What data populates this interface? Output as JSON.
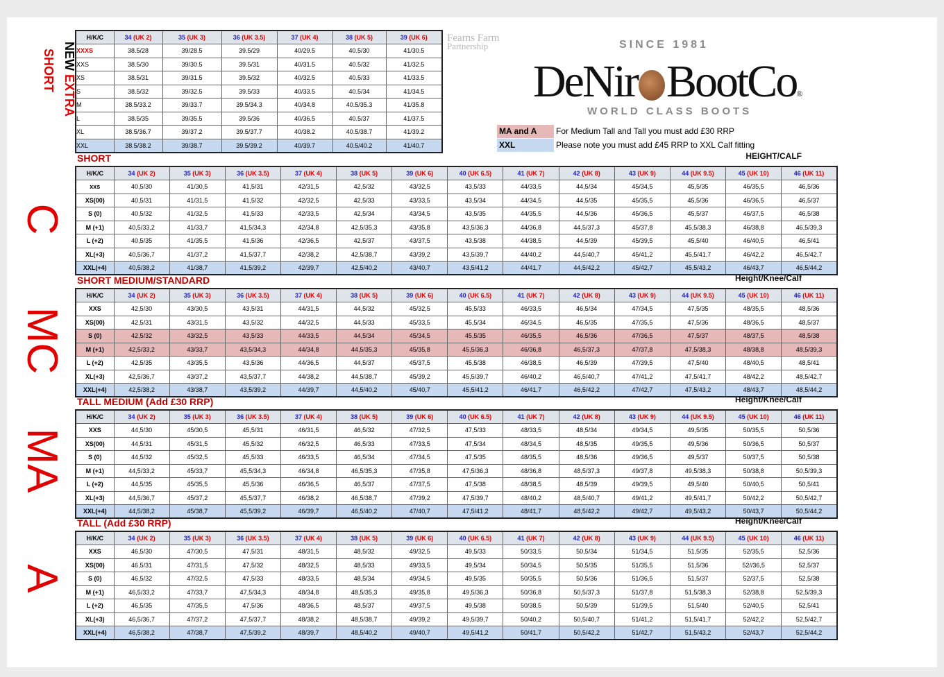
{
  "header_label": "H/K/C",
  "sizes": [
    {
      "size": "34",
      "uk": "(UK 2)"
    },
    {
      "size": "35",
      "uk": "(UK 3)"
    },
    {
      "size": "36",
      "uk": "(UK 3.5)"
    },
    {
      "size": "37",
      "uk": "(UK 4)"
    },
    {
      "size": "38",
      "uk": "(UK 5)"
    },
    {
      "size": "39",
      "uk": "(UK 6)"
    },
    {
      "size": "40",
      "uk": "(UK 6.5)"
    },
    {
      "size": "41",
      "uk": "(UK 7)"
    },
    {
      "size": "42",
      "uk": "(UK 8)"
    },
    {
      "size": "43",
      "uk": "(UK 9)"
    },
    {
      "size": "44",
      "uk": "(UK 9.5)"
    },
    {
      "size": "45",
      "uk": "(UK 10)"
    },
    {
      "size": "46",
      "uk": "(UK 11)"
    }
  ],
  "logo": {
    "partner_line1": "Fearns Farm",
    "partner_line2": "Partnership",
    "since": "SINCE 1981",
    "brand_start": "DeNir",
    "brand_end": "BootCo",
    "reg": "®",
    "tagline": "WORLD CLASS BOOTS"
  },
  "notes": [
    {
      "key": "MA and A",
      "text": "For Medium Tall and Tall you must add £30 RRP",
      "fill": "#e6b8b8"
    },
    {
      "key": "XXL",
      "text": "Please note you must add £45 RRP to XXL Calf fitting",
      "fill": "#c6d9f1"
    }
  ],
  "extra_short": {
    "side_words": [
      "NEW",
      "EXTRA",
      "SHORT"
    ],
    "rows": [
      {
        "label": "XXXS",
        "color": "#e00000",
        "cells": [
          "38.5/28",
          "39/28.5",
          "39.5/29",
          "40/29.5",
          "40.5/30",
          "41/30.5"
        ]
      },
      {
        "label": "XXS",
        "cells": [
          "38.5/30",
          "39/30.5",
          "39.5/31",
          "40/31.5",
          "40.5/32",
          "41/32.5"
        ]
      },
      {
        "label": "XS",
        "cells": [
          "38.5/31",
          "39/31.5",
          "39.5/32",
          "40/32.5",
          "40.5/33",
          "41/33.5"
        ]
      },
      {
        "label": "S",
        "cells": [
          "38.5/32",
          "39/32.5",
          "39.5/33",
          "40/33.5",
          "40.5/34",
          "41/34.5"
        ]
      },
      {
        "label": "M",
        "cells": [
          "38.5/33.2",
          "39/33.7",
          "39.5/34.3",
          "40/34.8",
          "40.5/35.3",
          "41/35.8"
        ]
      },
      {
        "label": "L",
        "cells": [
          "38.5/35",
          "39/35.5",
          "39.5/36",
          "40/36.5",
          "40.5/37",
          "41/37.5"
        ]
      },
      {
        "label": "XL",
        "cells": [
          "38.5/36.7",
          "39/37.2",
          "39.5/37.7",
          "40/38.2",
          "40.5/38.7",
          "41/39.2"
        ]
      },
      {
        "label": "XXL",
        "fill": "#c6d9f1",
        "cells": [
          "38.5/38.2",
          "39/38.7",
          "39.5/39.2",
          "40/39.7",
          "40.5/40.2",
          "41/40.7"
        ]
      }
    ]
  },
  "sections": [
    {
      "side_label": "C",
      "title": "SHORT",
      "measure": "HEIGHT/CALF",
      "rows": [
        {
          "label": "xxs",
          "cells": [
            "40,5/30",
            "41/30,5",
            "41,5/31",
            "42/31,5",
            "42,5/32",
            "43/32,5",
            "43,5/33",
            "44/33,5",
            "44,5/34",
            "45/34,5",
            "45,5/35",
            "46/35,5",
            "46,5/36"
          ]
        },
        {
          "label": "XS(00)",
          "cells": [
            "40,5/31",
            "41/31,5",
            "41,5/32",
            "42/32,5",
            "42,5/33",
            "43/33,5",
            "43,5/34",
            "44/34,5",
            "44,5/35",
            "45/35,5",
            "45,5/36",
            "46/36,5",
            "46,5/37"
          ]
        },
        {
          "label": "S (0)",
          "cells": [
            "40,5/32",
            "41/32,5",
            "41,5/33",
            "42/33,5",
            "42,5/34",
            "43/34,5",
            "43,5/35",
            "44/35,5",
            "44,5/36",
            "45/36,5",
            "45,5/37",
            "46/37,5",
            "46,5/38"
          ]
        },
        {
          "label": "M (+1)",
          "cells": [
            "40,5/33,2",
            "41/33,7",
            "41,5/34,3",
            "42/34,8",
            "42,5/35,3",
            "43/35,8",
            "43,5/36,3",
            "44/36,8",
            "44,5/37,3",
            "45/37,8",
            "45,5/38,3",
            "46/38,8",
            "46,5/39,3"
          ]
        },
        {
          "label": "L (+2)",
          "cells": [
            "40,5/35",
            "41/35,5",
            "41,5/36",
            "42/36,5",
            "42,5/37",
            "43/37,5",
            "43,5/38",
            "44/38,5",
            "44,5/39",
            "45/39,5",
            "45,5/40",
            "46/40,5",
            "46,5/41"
          ]
        },
        {
          "label": "XL(+3)",
          "cells": [
            "40,5/36,7",
            "41/37,2",
            "41,5/37,7",
            "42/38,2",
            "42,5/38,7",
            "43/39,2",
            "43,5/39,7",
            "44/40,2",
            "44,5/40,7",
            "45/41,2",
            "45,5/41,7",
            "46/42,2",
            "46,5/42,7"
          ]
        },
        {
          "label": "XXL(+4)",
          "fill": "#c6d9f1",
          "cells": [
            "40,5/38,2",
            "41/38,7",
            "41,5/39,2",
            "42/39,7",
            "42,5/40,2",
            "43/40,7",
            "43,5/41,2",
            "44/41,7",
            "44,5/42,2",
            "45/42,7",
            "45,5/43,2",
            "46/43,7",
            "46,5/44,2"
          ]
        }
      ]
    },
    {
      "side_label": "MC",
      "title": "SHORT MEDIUM/STANDARD",
      "measure": "Height/Knee/Calf",
      "rows": [
        {
          "label": "XXS",
          "cells": [
            "42,5/30",
            "43/30,5",
            "43,5/31",
            "44/31,5",
            "44,5/32",
            "45/32,5",
            "45,5/33",
            "46/33,5",
            "46,5/34",
            "47/34,5",
            "47,5/35",
            "48/35,5",
            "48,5/36"
          ]
        },
        {
          "label": "XS(00)",
          "cells": [
            "42,5/31",
            "43/31,5",
            "43,5/32",
            "44/32,5",
            "44,5/33",
            "45/33,5",
            "45,5/34",
            "46/34,5",
            "46,5/35",
            "47/35,5",
            "47,5/36",
            "48/36,5",
            "48,5/37"
          ]
        },
        {
          "label": "S (0)",
          "fill": "#e6b8b8",
          "cells": [
            "42,5/32",
            "43/32,5",
            "43,5/33",
            "44/33,5",
            "44,5/34",
            "45/34,5",
            "45,5/35",
            "46/35,5",
            "46,5/36",
            "47/36,5",
            "47,5/37",
            "48/37,5",
            "48,5/38"
          ]
        },
        {
          "label": "M (+1)",
          "fill": "#e6b8b8",
          "cells": [
            "42,5/33,2",
            "43/33,7",
            "43,5/34,3",
            "44/34,8",
            "44,5/35,3",
            "45/35,8",
            "45,5/36,3",
            "46/36,8",
            "46,5/37,3",
            "47/37,8",
            "47,5/38,3",
            "48/38,8",
            "48,5/39,3"
          ]
        },
        {
          "label": "L (+2)",
          "cells": [
            "42,5/35",
            "43/35,5",
            "43,5/36",
            "44/36,5",
            "44,5/37",
            "45/37,5",
            "45,5/38",
            "46/38,5",
            "46,5/39",
            "47/39,5",
            "47,5/40",
            "48/40,5",
            "48,5/41"
          ]
        },
        {
          "label": "XL(+3)",
          "cells": [
            "42,5/36,7",
            "43/37,2",
            "43,5/37,7",
            "44/38,2",
            "44,5/38,7",
            "45/39,2",
            "45,5/39,7",
            "46/40,2",
            "46,5/40,7",
            "47/41,2",
            "47,5/41,7",
            "48/42,2",
            "48,5/42,7"
          ]
        },
        {
          "label": "XXL(+4)",
          "fill": "#c6d9f1",
          "cells": [
            "42,5/38,2",
            "43/38,7",
            "43,5/39,2",
            "44/39,7",
            "44,5/40,2",
            "45/40,7",
            "45,5/41,2",
            "46/41,7",
            "46,5/42,2",
            "47/42,7",
            "47,5/43,2",
            "48/43,7",
            "48,5/44,2"
          ]
        }
      ]
    },
    {
      "side_label": "MA",
      "title": "TALL MEDIUM (Add £30 RRP)",
      "measure": "Height/Knee/Calf",
      "rows": [
        {
          "label": "XXS",
          "cells": [
            "44,5/30",
            "45/30,5",
            "45,5/31",
            "46/31,5",
            "46,5/32",
            "47/32,5",
            "47,5/33",
            "48/33,5",
            "48,5/34",
            "49/34,5",
            "49,5/35",
            "50/35,5",
            "50,5/36"
          ]
        },
        {
          "label": "XS(00)",
          "cells": [
            "44,5/31",
            "45/31,5",
            "45,5/32",
            "46/32,5",
            "46,5/33",
            "47/33,5",
            "47,5/34",
            "48/34,5",
            "48,5/35",
            "49/35,5",
            "49,5/36",
            "50/36,5",
            "50,5/37"
          ]
        },
        {
          "label": "S (0)",
          "cells": [
            "44,5/32",
            "45/32,5",
            "45,5/33",
            "46/33,5",
            "46,5/34",
            "47/34,5",
            "47,5/35",
            "48/35,5",
            "48,5/36",
            "49/36,5",
            "49,5/37",
            "50/37,5",
            "50,5/38"
          ]
        },
        {
          "label": "M (+1)",
          "cells": [
            "44,5/33,2",
            "45/33,7",
            "45,5/34,3",
            "46/34,8",
            "46,5/35,3",
            "47/35,8",
            "47,5/36,3",
            "48/36,8",
            "48,5/37,3",
            "49/37,8",
            "49,5/38,3",
            "50/38,8",
            "50,5/39,3"
          ]
        },
        {
          "label": "L (+2)",
          "cells": [
            "44,5/35",
            "45/35,5",
            "45,5/36",
            "46/36,5",
            "46,5/37",
            "47/37,5",
            "47,5/38",
            "48/38,5",
            "48,5/39",
            "49/39,5",
            "49,5/40",
            "50/40,5",
            "50,5/41"
          ]
        },
        {
          "label": "XL(+3)",
          "cells": [
            "44,5/36,7",
            "45/37,2",
            "45,5/37,7",
            "46/38,2",
            "46,5/38,7",
            "47/39,2",
            "47,5/39,7",
            "48/40,2",
            "48,5/40,7",
            "49/41,2",
            "49,5/41,7",
            "50/42,2",
            "50,5/42,7"
          ]
        },
        {
          "label": "XXL(+4)",
          "fill": "#c6d9f1",
          "cells": [
            "44,5/38,2",
            "45/38,7",
            "45,5/39,2",
            "46/39,7",
            "46,5/40,2",
            "47/40,7",
            "47,5/41,2",
            "48/41,7",
            "48,5/42,2",
            "49/42,7",
            "49,5/43,2",
            "50/43,7",
            "50,5/44,2"
          ]
        }
      ]
    },
    {
      "side_label": "A",
      "title": "TALL (Add £30 RRP)",
      "measure": "Height/Knee/Calf",
      "rows": [
        {
          "label": "XXS",
          "cells": [
            "46,5/30",
            "47/30,5",
            "47,5/31",
            "48/31,5",
            "48,5/32",
            "49/32,5",
            "49,5/33",
            "50/33,5",
            "50,5/34",
            "51/34,5",
            "51,5/35",
            "52/35,5",
            "52,5/36"
          ]
        },
        {
          "label": "XS(00)",
          "cells": [
            "46,5/31",
            "47/31,5",
            "47,5/32",
            "48/32,5",
            "48,5/33",
            "49/33,5",
            "49,5/34",
            "50/34,5",
            "50,5/35",
            "51/35,5",
            "51,5/36",
            "52//36,5",
            "52,5/37"
          ]
        },
        {
          "label": "S (0)",
          "cells": [
            "46,5/32",
            "47/32,5",
            "47,5/33",
            "48/33,5",
            "48,5/34",
            "49/34,5",
            "49,5/35",
            "50/35,5",
            "50,5/36",
            "51/36,5",
            "51,5/37",
            "52/37,5",
            "52,5/38"
          ]
        },
        {
          "label": "M (+1)",
          "cells": [
            "46,5/33,2",
            "47/33,7",
            "47,5/34,3",
            "48/34,8",
            "48,5/35,3",
            "49/35,8",
            "49,5/36,3",
            "50/36,8",
            "50,5/37,3",
            "51/37,8",
            "51,5/38,3",
            "52/38,8",
            "52,5/39,3"
          ]
        },
        {
          "label": "L (+2)",
          "cells": [
            "46,5/35",
            "47/35,5",
            "47,5/36",
            "48/36,5",
            "48,5/37",
            "49/37,5",
            "49,5/38",
            "50/38,5",
            "50,5/39",
            "51/39,5",
            "51,5/40",
            "52/40,5",
            "52,5/41"
          ]
        },
        {
          "label": "XL(+3)",
          "cells": [
            "46,5/36,7",
            "47/37,2",
            "47,5/37,7",
            "48/38,2",
            "48,5/38,7",
            "49/39,2",
            "49,5/39,7",
            "50/40,2",
            "50,5/40,7",
            "51/41,2",
            "51,5/41,7",
            "52/42,2",
            "52,5/42,7"
          ]
        },
        {
          "label": "XXL(+4)",
          "fill": "#c6d9f1",
          "cells": [
            "46,5/38,2",
            "47/38,7",
            "47,5/39,2",
            "48/39,7",
            "48,5/40,2",
            "49/40,7",
            "49,5/41,2",
            "50/41,7",
            "50,5/42,2",
            "51/42,7",
            "51,5/43,2",
            "52/43,7",
            "52,5/44,2"
          ]
        }
      ]
    }
  ]
}
